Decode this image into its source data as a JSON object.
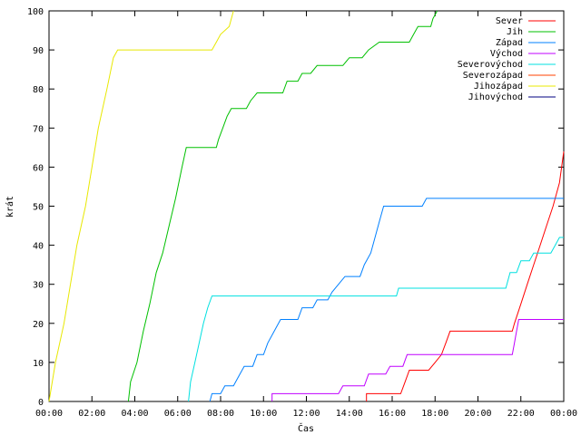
{
  "chart_data": {
    "type": "line",
    "xlabel": "Čas",
    "ylabel": "krát",
    "xlim_hours": [
      0,
      24
    ],
    "ylim": [
      0,
      100
    ],
    "x_tick_labels": [
      "00:00",
      "02:00",
      "04:00",
      "06:00",
      "08:00",
      "10:00",
      "12:00",
      "14:00",
      "16:00",
      "18:00",
      "20:00",
      "22:00",
      "00:00"
    ],
    "y_ticks": [
      0,
      10,
      20,
      30,
      40,
      50,
      60,
      70,
      80,
      90,
      100
    ],
    "grid": false,
    "legend_position": "top-right",
    "x_unit": "hours",
    "series": [
      {
        "name": "Sever",
        "color": "#ff0000",
        "points": [
          [
            14.8,
            0
          ],
          [
            14.8,
            2
          ],
          [
            16.4,
            2
          ],
          [
            16.6,
            5
          ],
          [
            16.8,
            8
          ],
          [
            17.7,
            8
          ],
          [
            18.0,
            10
          ],
          [
            18.3,
            12
          ],
          [
            18.5,
            15
          ],
          [
            18.7,
            18
          ],
          [
            21.6,
            18
          ],
          [
            21.7,
            20
          ],
          [
            22.0,
            25
          ],
          [
            22.3,
            30
          ],
          [
            22.6,
            35
          ],
          [
            22.9,
            40
          ],
          [
            23.2,
            45
          ],
          [
            23.5,
            50
          ],
          [
            23.8,
            56
          ],
          [
            24.0,
            64
          ]
        ]
      },
      {
        "name": "Jih",
        "color": "#00c000",
        "points": [
          [
            3.7,
            0
          ],
          [
            3.8,
            5
          ],
          [
            4.1,
            10
          ],
          [
            4.4,
            18
          ],
          [
            4.7,
            25
          ],
          [
            5.0,
            33
          ],
          [
            5.3,
            38
          ],
          [
            5.6,
            45
          ],
          [
            5.9,
            52
          ],
          [
            6.2,
            60
          ],
          [
            6.4,
            65
          ],
          [
            7.8,
            65
          ],
          [
            7.9,
            67
          ],
          [
            8.1,
            70
          ],
          [
            8.3,
            73
          ],
          [
            8.5,
            75
          ],
          [
            9.2,
            75
          ],
          [
            9.4,
            77
          ],
          [
            9.7,
            79
          ],
          [
            10.9,
            79
          ],
          [
            11.1,
            82
          ],
          [
            11.6,
            82
          ],
          [
            11.8,
            84
          ],
          [
            12.2,
            84
          ],
          [
            12.5,
            86
          ],
          [
            13.7,
            86
          ],
          [
            14.0,
            88
          ],
          [
            14.6,
            88
          ],
          [
            14.9,
            90
          ],
          [
            15.4,
            92
          ],
          [
            16.8,
            92
          ],
          [
            17.0,
            94
          ],
          [
            17.2,
            96
          ],
          [
            17.8,
            96
          ],
          [
            17.9,
            98
          ],
          [
            18.1,
            100
          ]
        ]
      },
      {
        "name": "Západ",
        "color": "#0080ff",
        "points": [
          [
            7.5,
            0
          ],
          [
            7.6,
            2
          ],
          [
            8.0,
            2
          ],
          [
            8.2,
            4
          ],
          [
            8.6,
            4
          ],
          [
            8.8,
            6
          ],
          [
            9.1,
            9
          ],
          [
            9.5,
            9
          ],
          [
            9.7,
            12
          ],
          [
            10.0,
            12
          ],
          [
            10.2,
            15
          ],
          [
            10.5,
            18
          ],
          [
            10.8,
            21
          ],
          [
            11.6,
            21
          ],
          [
            11.8,
            24
          ],
          [
            12.3,
            24
          ],
          [
            12.5,
            26
          ],
          [
            13.0,
            26
          ],
          [
            13.2,
            28
          ],
          [
            13.5,
            30
          ],
          [
            13.8,
            32
          ],
          [
            14.5,
            32
          ],
          [
            14.7,
            35
          ],
          [
            15.0,
            38
          ],
          [
            15.2,
            42
          ],
          [
            15.4,
            46
          ],
          [
            15.6,
            50
          ],
          [
            17.4,
            50
          ],
          [
            17.6,
            52
          ],
          [
            24.0,
            52
          ]
        ]
      },
      {
        "name": "Východ",
        "color": "#c000ff",
        "points": [
          [
            10.4,
            0
          ],
          [
            10.4,
            2
          ],
          [
            13.5,
            2
          ],
          [
            13.7,
            4
          ],
          [
            14.7,
            4
          ],
          [
            14.9,
            7
          ],
          [
            15.7,
            7
          ],
          [
            15.9,
            9
          ],
          [
            16.5,
            9
          ],
          [
            16.7,
            12
          ],
          [
            21.6,
            12
          ],
          [
            21.7,
            15
          ],
          [
            21.8,
            18
          ],
          [
            21.9,
            21
          ],
          [
            24.0,
            21
          ]
        ]
      },
      {
        "name": "Severovýchod",
        "color": "#00e0e0",
        "points": [
          [
            6.5,
            0
          ],
          [
            6.6,
            5
          ],
          [
            6.8,
            10
          ],
          [
            7.0,
            15
          ],
          [
            7.2,
            20
          ],
          [
            7.4,
            24
          ],
          [
            7.6,
            27
          ],
          [
            16.2,
            27
          ],
          [
            16.3,
            29
          ],
          [
            21.3,
            29
          ],
          [
            21.5,
            33
          ],
          [
            21.8,
            33
          ],
          [
            22.0,
            36
          ],
          [
            22.4,
            36
          ],
          [
            22.6,
            38
          ],
          [
            23.4,
            38
          ],
          [
            23.6,
            40
          ],
          [
            23.8,
            42
          ],
          [
            24.0,
            42
          ]
        ]
      },
      {
        "name": "Severozápad",
        "color": "#ff4000",
        "points": []
      },
      {
        "name": "Jihozápad",
        "color": "#e8e800",
        "points": [
          [
            0.0,
            0
          ],
          [
            0.3,
            10
          ],
          [
            0.7,
            20
          ],
          [
            1.0,
            30
          ],
          [
            1.3,
            40
          ],
          [
            1.7,
            50
          ],
          [
            2.0,
            60
          ],
          [
            2.3,
            70
          ],
          [
            2.7,
            80
          ],
          [
            3.0,
            88
          ],
          [
            3.2,
            90
          ],
          [
            7.6,
            90
          ],
          [
            7.8,
            92
          ],
          [
            8.0,
            94
          ],
          [
            8.4,
            96
          ],
          [
            8.6,
            100
          ]
        ]
      },
      {
        "name": "Jihovýchod",
        "color": "#000080",
        "points": []
      }
    ]
  }
}
